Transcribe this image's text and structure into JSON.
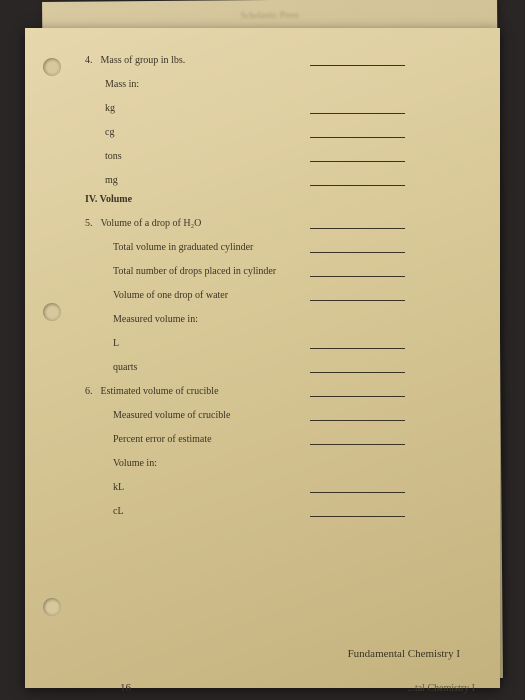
{
  "header_blur": "Scholastic Press",
  "section4": {
    "number": "4.",
    "title": "Mass of group in lbs.",
    "mass_in": "Mass in:",
    "units": [
      "kg",
      "cg",
      "tons",
      "mg"
    ]
  },
  "sectionIV": {
    "heading": "IV. Volume"
  },
  "section5": {
    "number": "5.",
    "title": "Volume of a drop of H₂O",
    "items": [
      "Total volume in graduated cylinder",
      "Total number of drops placed in cylinder",
      "Volume of one drop of water"
    ],
    "measured_in": "Measured volume in:",
    "units": [
      "L",
      "quarts"
    ]
  },
  "section6": {
    "number": "6.",
    "title": "Estimated volume of crucible",
    "items": [
      "Measured volume of crucible",
      "Percent error of estimate"
    ],
    "volume_in": "Volume in:",
    "units": [
      "kL",
      "cL"
    ]
  },
  "footer": "Fundamental Chemistry I",
  "footer_behind": "...tal Chemistry I",
  "page_number": "16"
}
